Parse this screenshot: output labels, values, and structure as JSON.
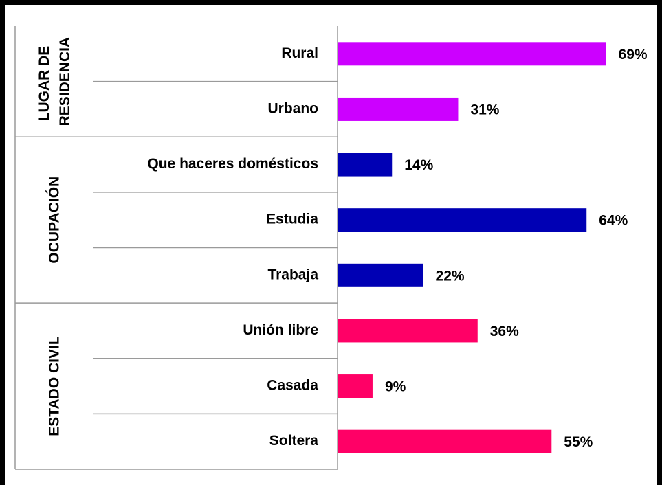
{
  "chart_data": {
    "type": "bar",
    "orientation": "horizontal",
    "series": [
      {
        "name": "LUGAR DE RESIDENCIA",
        "color": "#cc00ff",
        "categories": [
          "Rural",
          "Urbano"
        ],
        "values": [
          69,
          31
        ],
        "value_labels": [
          "69%",
          "31%"
        ]
      },
      {
        "name": "OCUPACIÓN",
        "color": "#0000b4",
        "categories": [
          "Que haceres domésticos",
          "Estudia",
          "Trabaja"
        ],
        "values": [
          14,
          64,
          22
        ],
        "value_labels": [
          "14%",
          "64%",
          "22%"
        ]
      },
      {
        "name": "ESTADO CIVIL",
        "color": "#ff0066",
        "categories": [
          "Unión libre",
          "Casada",
          "Soltera"
        ],
        "values": [
          36,
          9,
          55
        ],
        "value_labels": [
          "36%",
          "9%",
          "55%"
        ]
      }
    ]
  }
}
